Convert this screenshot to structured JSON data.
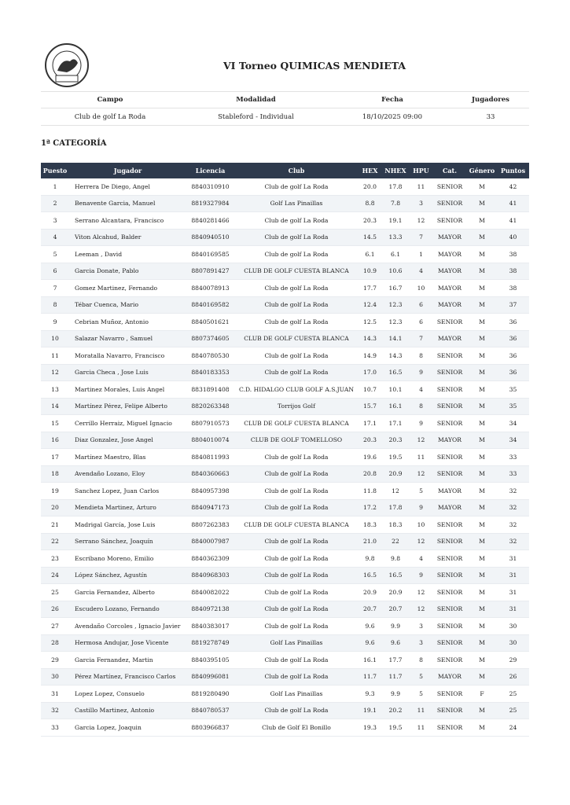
{
  "header": {
    "title": "VI Torneo QUIMICAS MENDIETA"
  },
  "info": {
    "headers": [
      "Campo",
      "Modalidad",
      "Fecha",
      "Jugadores"
    ],
    "values": [
      "Club de golf La Roda",
      "Stableford - Individual",
      "18/10/2025 09:00",
      "33"
    ]
  },
  "section": {
    "title": "1ª CATEGORÍA"
  },
  "table": {
    "headers": [
      "Puesto",
      "Jugador",
      "Licencia",
      "Club",
      "HEX",
      "NHEX",
      "HPU",
      "Cat.",
      "Género",
      "Puntos"
    ],
    "rows": [
      [
        "1",
        "Herrera De Diego, Angel",
        "8840310910",
        "Club de golf La Roda",
        "20.0",
        "17.8",
        "11",
        "SENIOR",
        "M",
        "42"
      ],
      [
        "2",
        "Benavente Garcia, Manuel",
        "8819327984",
        "Golf Las Pinaillas",
        "8.8",
        "7.8",
        "3",
        "SENIOR",
        "M",
        "41"
      ],
      [
        "3",
        "Serrano Alcantara, Francisco",
        "8840281466",
        "Club de golf La Roda",
        "20.3",
        "19.1",
        "12",
        "SENIOR",
        "M",
        "41"
      ],
      [
        "4",
        "Viton Alcahud, Balder",
        "8840940510",
        "Club de golf La Roda",
        "14.5",
        "13.3",
        "7",
        "MAYOR",
        "M",
        "40"
      ],
      [
        "5",
        "Leeman , David",
        "8840169585",
        "Club de golf La Roda",
        "6.1",
        "6.1",
        "1",
        "MAYOR",
        "M",
        "38"
      ],
      [
        "6",
        "Garcia Donate, Pablo",
        "8807891427",
        "CLUB DE GOLF CUESTA BLANCA",
        "10.9",
        "10.6",
        "4",
        "MAYOR",
        "M",
        "38"
      ],
      [
        "7",
        "Gomez Martinez, Fernando",
        "8840078913",
        "Club de golf La Roda",
        "17.7",
        "16.7",
        "10",
        "MAYOR",
        "M",
        "38"
      ],
      [
        "8",
        "Tébar Cuenca, Mario",
        "8840169582",
        "Club de golf La Roda",
        "12.4",
        "12.3",
        "6",
        "MAYOR",
        "M",
        "37"
      ],
      [
        "9",
        "Cebrian Muñoz, Antonio",
        "8840501621",
        "Club de golf La Roda",
        "12.5",
        "12.3",
        "6",
        "SENIOR",
        "M",
        "36"
      ],
      [
        "10",
        "Salazar Navarro , Samuel",
        "8807374605",
        "CLUB DE GOLF CUESTA BLANCA",
        "14.3",
        "14.1",
        "7",
        "MAYOR",
        "M",
        "36"
      ],
      [
        "11",
        "Moratalla Navarro, Francisco",
        "8840780530",
        "Club de golf La Roda",
        "14.9",
        "14.3",
        "8",
        "SENIOR",
        "M",
        "36"
      ],
      [
        "12",
        "Garcia Checa , Jose Luis",
        "8840183353",
        "Club de golf La Roda",
        "17.0",
        "16.5",
        "9",
        "SENIOR",
        "M",
        "36"
      ],
      [
        "13",
        "Martinez Morales, Luis Angel",
        "8831891408",
        "C.D. HIDALGO CLUB GOLF A.S.JUAN",
        "10.7",
        "10.1",
        "4",
        "SENIOR",
        "M",
        "35"
      ],
      [
        "14",
        "Martínez Pérez, Felipe Alberto",
        "8820263348",
        "Torrijos Golf",
        "15.7",
        "16.1",
        "8",
        "SENIOR",
        "M",
        "35"
      ],
      [
        "15",
        "Cerrillo Herraiz, Miguel Ignacio",
        "8807910573",
        "CLUB DE GOLF CUESTA BLANCA",
        "17.1",
        "17.1",
        "9",
        "SENIOR",
        "M",
        "34"
      ],
      [
        "16",
        "Diaz Gonzalez, Jose Angel",
        "8804010074",
        "CLUB DE GOLF TOMELLOSO",
        "20.3",
        "20.3",
        "12",
        "MAYOR",
        "M",
        "34"
      ],
      [
        "17",
        "Martínez Maestro, Blas",
        "8840811993",
        "Club de golf La Roda",
        "19.6",
        "19.5",
        "11",
        "SENIOR",
        "M",
        "33"
      ],
      [
        "18",
        "Avendaño Lozano, Eloy",
        "8840360663",
        "Club de golf La Roda",
        "20.8",
        "20.9",
        "12",
        "SENIOR",
        "M",
        "33"
      ],
      [
        "19",
        "Sanchez Lopez, Juan Carlos",
        "8840957398",
        "Club de golf La Roda",
        "11.8",
        "12",
        "5",
        "MAYOR",
        "M",
        "32"
      ],
      [
        "20",
        "Mendieta Martinez, Arturo",
        "8840947173",
        "Club de golf La Roda",
        "17.2",
        "17.8",
        "9",
        "MAYOR",
        "M",
        "32"
      ],
      [
        "21",
        "Madrigal García, Jose Luis",
        "8807262383",
        "CLUB DE GOLF CUESTA BLANCA",
        "18.3",
        "18.3",
        "10",
        "SENIOR",
        "M",
        "32"
      ],
      [
        "22",
        "Serrano Sánchez, Joaquín",
        "8840007987",
        "Club de golf La Roda",
        "21.0",
        "22",
        "12",
        "SENIOR",
        "M",
        "32"
      ],
      [
        "23",
        "Escribano Moreno, Emilio",
        "8840362309",
        "Club de golf La Roda",
        "9.8",
        "9.8",
        "4",
        "SENIOR",
        "M",
        "31"
      ],
      [
        "24",
        "López Sánchez, Agustín",
        "8840968303",
        "Club de golf La Roda",
        "16.5",
        "16.5",
        "9",
        "SENIOR",
        "M",
        "31"
      ],
      [
        "25",
        "Garcia Fernandez, Alberto",
        "8840082022",
        "Club de golf La Roda",
        "20.9",
        "20.9",
        "12",
        "SENIOR",
        "M",
        "31"
      ],
      [
        "26",
        "Escudero Lozano, Fernando",
        "8840972138",
        "Club de golf La Roda",
        "20.7",
        "20.7",
        "12",
        "SENIOR",
        "M",
        "31"
      ],
      [
        "27",
        "Avendaño Corcoles , Ignacio Javier",
        "8840383017",
        "Club de golf La Roda",
        "9.6",
        "9.9",
        "3",
        "SENIOR",
        "M",
        "30"
      ],
      [
        "28",
        "Hermosa Andujar, Jose Vicente",
        "8819278749",
        "Golf Las Pinaillas",
        "9.6",
        "9.6",
        "3",
        "SENIOR",
        "M",
        "30"
      ],
      [
        "29",
        "Garcia Fernandez, Martin",
        "8840395105",
        "Club de golf La Roda",
        "16.1",
        "17.7",
        "8",
        "SENIOR",
        "M",
        "29"
      ],
      [
        "30",
        "Pérez Martínez, Francisco Carlos",
        "8840996081",
        "Club de golf La Roda",
        "11.7",
        "11.7",
        "5",
        "MAYOR",
        "M",
        "26"
      ],
      [
        "31",
        "Lopez Lopez, Consuelo",
        "8819280490",
        "Golf Las Pinaillas",
        "9.3",
        "9.9",
        "5",
        "SENIOR",
        "F",
        "25"
      ],
      [
        "32",
        "Castillo Martinez, Antonio",
        "8840780537",
        "Club de golf La Roda",
        "19.1",
        "20.2",
        "11",
        "SENIOR",
        "M",
        "25"
      ],
      [
        "33",
        "Garcia Lopez, Joaquin",
        "8803966837",
        "Club de Golf El Bonillo",
        "19.3",
        "19.5",
        "11",
        "SENIOR",
        "M",
        "24"
      ]
    ]
  }
}
